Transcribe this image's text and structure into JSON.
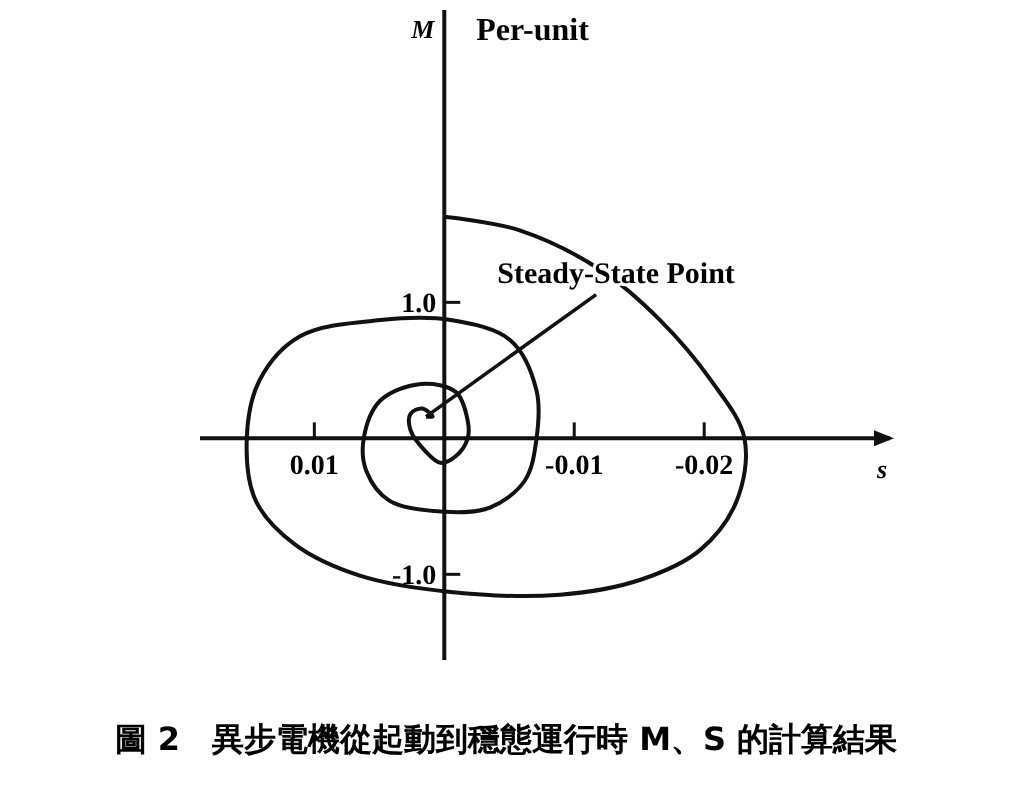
{
  "chart_data": {
    "type": "line",
    "title": "圖 2　異步電機從起動到穩態運行時 M、S 的計算結果",
    "xlabel": "s",
    "ylabel": "M",
    "annotations": [
      "Per-unit",
      {
        "text": "Steady-State Point",
        "x": 0.0014,
        "y": 0.16
      }
    ],
    "xlim": [
      0.0188,
      -0.0343
    ],
    "ylim": [
      -1.63,
      3.15
    ],
    "xticks": [
      {
        "value": 0.01,
        "label": "0.01"
      },
      {
        "value": -0.01,
        "label": "-0.01"
      },
      {
        "value": -0.02,
        "label": "-0.02"
      }
    ],
    "yticks": [
      {
        "value": 1,
        "label": "1.0"
      },
      {
        "value": -1,
        "label": "-1.0"
      }
    ],
    "grid": false,
    "marker": "none",
    "line_style": "solid",
    "series": [
      {
        "color": "#111111",
        "x": [
          0,
          -0.0058,
          -0.012,
          -0.0166,
          -0.0205,
          -0.0231,
          -0.0225,
          -0.0197,
          -0.0151,
          -0.0089,
          -0.0005,
          0.0065,
          0.0115,
          0.0145,
          0.0152,
          0.0142,
          0.0111,
          0.0049,
          -0.0005,
          -0.0051,
          -0.0071,
          -0.0071,
          -0.0062,
          -0.0035,
          0,
          0.0042,
          0.006,
          0.0062,
          0.0049,
          0.0018,
          -0.0009,
          -0.0018,
          -0.0018,
          -0.0009,
          0.0003,
          0.0015,
          0.0026,
          0.0026,
          0.0017,
          0.0009,
          0.0014
        ],
        "values": [
          1.63,
          1.53,
          1.24,
          0.87,
          0.43,
          0,
          -0.46,
          -0.82,
          -1.04,
          -1.15,
          -1.13,
          -1.01,
          -0.78,
          -0.46,
          0,
          0.43,
          0.75,
          0.87,
          0.87,
          0.72,
          0.35,
          0,
          -0.31,
          -0.51,
          -0.54,
          -0.46,
          -0.24,
          0,
          0.28,
          0.4,
          0.34,
          0.13,
          0,
          -0.13,
          -0.18,
          -0.09,
          0.06,
          0.18,
          0.22,
          0.16,
          0.16
        ]
      }
    ]
  }
}
